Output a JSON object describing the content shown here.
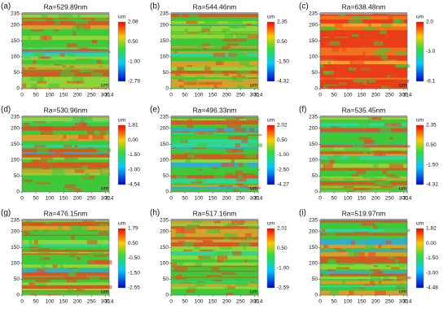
{
  "panels": [
    {
      "label": "(a)",
      "title": "Ra=529.89nm",
      "colorbar_ticks": [
        "2.08",
        "0.50",
        "-1.00",
        "-2.79"
      ]
    },
    {
      "label": "(b)",
      "title": "Ra=544.46nm",
      "colorbar_ticks": [
        "2.35",
        "0.50",
        "-1.50",
        "-4.32"
      ]
    },
    {
      "label": "(c)",
      "title": "Ra=638.48nm",
      "colorbar_ticks": [
        "2.0",
        "-3.0",
        "-8.1"
      ]
    },
    {
      "label": "(d)",
      "title": "Ra=530.96nm",
      "colorbar_ticks": [
        "1.81",
        "0.00",
        "-1.50",
        "-3.00",
        "-4.54"
      ]
    },
    {
      "label": "(e)",
      "title": "Ra=496.33nm",
      "colorbar_ticks": [
        "2.02",
        "0.50",
        "-1.00",
        "-2.50",
        "-4.27"
      ]
    },
    {
      "label": "(f)",
      "title": "Ra=535.45nm",
      "colorbar_ticks": [
        "2.35",
        "0.50",
        "-1.50",
        "-4.32"
      ]
    },
    {
      "label": "(g)",
      "title": "Ra=476.15nm",
      "colorbar_ticks": [
        "1.79",
        "0.50",
        "-0.50",
        "-1.50",
        "-2.55"
      ]
    },
    {
      "label": "(h)",
      "title": "Ra=517.16nm",
      "colorbar_ticks": [
        "2.01",
        "0.50",
        "-1.00",
        "-2.59"
      ]
    },
    {
      "label": "(i)",
      "title": "Ra=519.97nm",
      "colorbar_ticks": [
        "1.82",
        "0.00",
        "-1.50",
        "-3.00",
        "-4.48"
      ]
    }
  ],
  "unit": "um",
  "x_ticks": [
    "0",
    "50",
    "100",
    "150",
    "200",
    "250",
    "300",
    "314"
  ],
  "y_ticks": [
    "0",
    "50",
    "100",
    "150",
    "200",
    "235"
  ]
}
